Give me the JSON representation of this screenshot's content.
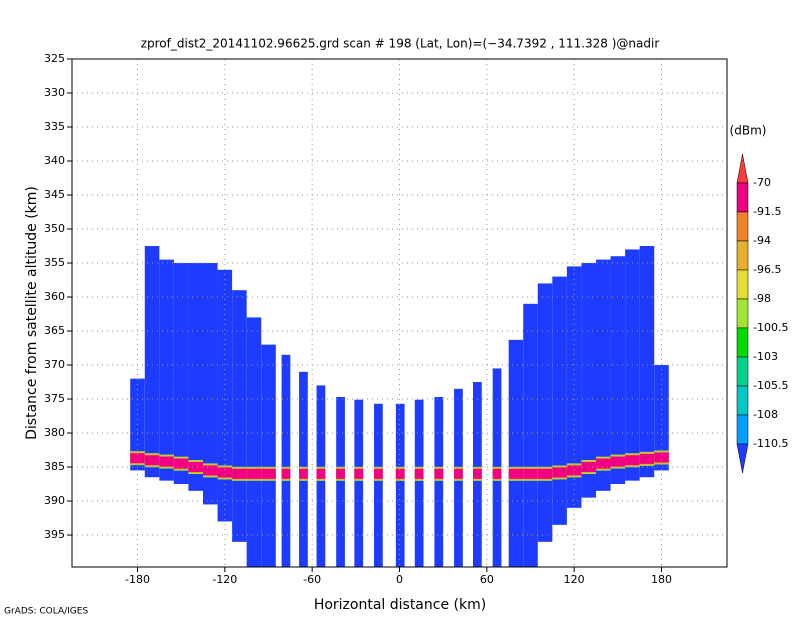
{
  "chart_data": {
    "type": "profile",
    "title": "zprof_dist2_20141102.96625.grd  scan # 198  (Lat, Lon)=(−34.7392 , 111.328 )@nadir",
    "xlabel": "Horizontal distance (km)",
    "ylabel": "Distance from satellite altitude (km)",
    "footer": "GrADS: COLA/IGES",
    "xlim": [
      -225,
      225
    ],
    "xticks": [
      -180,
      -120,
      -60,
      0,
      60,
      120,
      180
    ],
    "ylim": [
      325,
      399.7
    ],
    "y_reversed": true,
    "yticks": [
      325,
      330,
      335,
      340,
      345,
      350,
      355,
      360,
      365,
      370,
      375,
      380,
      385,
      390,
      395
    ],
    "grid": true,
    "x": [
      -180,
      -170,
      -160,
      -150,
      -140,
      -130,
      -120,
      -110,
      -100,
      -90,
      -78,
      -66,
      -54,
      -40.5,
      -28,
      -14.5,
      0.5,
      13.5,
      27,
      40.5,
      53.5,
      67,
      80,
      90,
      100,
      110,
      120,
      130,
      140,
      150,
      160,
      170,
      180
    ],
    "widths": [
      10,
      10,
      10,
      10,
      10,
      10,
      10,
      10,
      10,
      10,
      6,
      6,
      6,
      6,
      6,
      6,
      6,
      6,
      6,
      6,
      6,
      6,
      10,
      10,
      10,
      10,
      10,
      10,
      10,
      10,
      10,
      10,
      10
    ],
    "top": [
      372,
      352.5,
      354.5,
      355,
      355,
      355,
      356,
      359,
      363,
      367,
      368.5,
      371,
      373,
      374.7,
      375.1,
      375.7,
      375.7,
      375.1,
      374.7,
      373.5,
      372.5,
      370.5,
      366.3,
      361,
      358,
      357,
      355.5,
      355,
      354.5,
      354,
      353,
      352.5,
      370
    ],
    "bottom": [
      385.5,
      386.5,
      387,
      387.5,
      388.5,
      390.5,
      393,
      396,
      399.7,
      399.7,
      399.7,
      399.7,
      399.7,
      399.7,
      399.7,
      399.7,
      399.7,
      399.7,
      399.7,
      399.7,
      399.7,
      399.7,
      399.7,
      399.7,
      396,
      393.5,
      391,
      389.5,
      388.5,
      387.5,
      387,
      386.5,
      385.5
    ],
    "bright_band": [
      383.7,
      384,
      384.2,
      384.5,
      385,
      385.5,
      385.8,
      386,
      386,
      386,
      386,
      386,
      386,
      386,
      386,
      386,
      386,
      386,
      386,
      386,
      386,
      386,
      386,
      386,
      386,
      385.8,
      385.5,
      385,
      384.5,
      384.2,
      384,
      383.8,
      383.6
    ],
    "colorbar": {
      "title": "(dBm)",
      "levels": [
        -70,
        -91.5,
        -94,
        -96.5,
        -98,
        -100.5,
        -103,
        -105.5,
        -108,
        -110.5
      ],
      "colors": [
        "#fa3c3c",
        "#f00082",
        "#f08228",
        "#e6af2d",
        "#e6dc32",
        "#a0e632",
        "#00dc00",
        "#00d28c",
        "#00c8c8",
        "#00a0ff",
        "#1e3cff"
      ]
    }
  }
}
